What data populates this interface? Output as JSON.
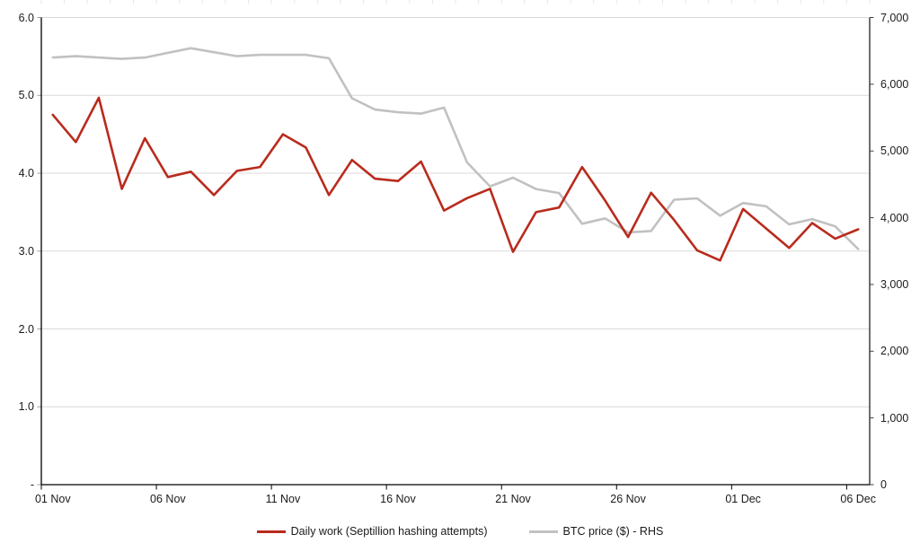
{
  "chart_data": {
    "type": "line",
    "title": "",
    "x": [
      "01 Nov",
      "02 Nov",
      "03 Nov",
      "04 Nov",
      "05 Nov",
      "06 Nov",
      "07 Nov",
      "08 Nov",
      "09 Nov",
      "10 Nov",
      "11 Nov",
      "12 Nov",
      "13 Nov",
      "14 Nov",
      "15 Nov",
      "16 Nov",
      "17 Nov",
      "18 Nov",
      "19 Nov",
      "20 Nov",
      "21 Nov",
      "22 Nov",
      "23 Nov",
      "24 Nov",
      "25 Nov",
      "26 Nov",
      "27 Nov",
      "28 Nov",
      "29 Nov",
      "30 Nov",
      "01 Dec",
      "02 Dec",
      "03 Dec",
      "04 Dec",
      "05 Dec",
      "06 Dec"
    ],
    "series": [
      {
        "name": "Daily work (Septillion hashing attempts)",
        "axis": "left",
        "color": "#b92b1d",
        "values": [
          4.75,
          4.4,
          4.97,
          3.8,
          4.45,
          3.95,
          4.02,
          3.72,
          4.03,
          4.08,
          4.5,
          4.33,
          3.72,
          4.17,
          3.93,
          3.9,
          4.15,
          3.52,
          3.68,
          3.8,
          2.99,
          3.5,
          3.56,
          4.08,
          3.65,
          3.18,
          3.75,
          3.4,
          3.01,
          2.88,
          3.54,
          3.29,
          3.04,
          3.36,
          3.16,
          3.28
        ]
      },
      {
        "name": "BTC price ($) - RHS",
        "axis": "right",
        "color": "#c1c1c1",
        "values": [
          6400,
          6420,
          6400,
          6380,
          6400,
          6470,
          6540,
          6480,
          6420,
          6440,
          6440,
          6440,
          6390,
          5790,
          5620,
          5580,
          5560,
          5650,
          4830,
          4470,
          4600,
          4430,
          4370,
          3910,
          3990,
          3780,
          3800,
          4270,
          4290,
          4030,
          4220,
          4170,
          3900,
          3980,
          3870,
          3530
        ]
      }
    ],
    "left_axis": {
      "min": 0,
      "max": 6,
      "tick_values": [
        6,
        5,
        4,
        3,
        2,
        1,
        0
      ],
      "tick_labels": [
        "6.0",
        "5.0",
        "4.0",
        "3.0",
        "2.0",
        "1.0",
        "-"
      ]
    },
    "right_axis": {
      "min": 0,
      "max": 7000,
      "tick_values": [
        7000,
        6000,
        5000,
        4000,
        3000,
        2000,
        1000,
        0
      ],
      "tick_labels": [
        "7,000",
        "6,000",
        "5,000",
        "4,000",
        "3,000",
        "2,000",
        "1,000",
        "0"
      ]
    },
    "x_axis": {
      "tick_day_indices": [
        0,
        5,
        10,
        15,
        20,
        25,
        30,
        35
      ],
      "tick_labels": [
        "01 Nov",
        "06 Nov",
        "11 Nov",
        "16 Nov",
        "21 Nov",
        "26 Nov",
        "01 Dec",
        "06 Dec"
      ]
    },
    "grid": true,
    "legend_position": "bottom"
  },
  "colors": {
    "background": "#ffffff",
    "grid": "#d9d9d9",
    "top_tick": "#e6e6e6",
    "axis_left": "#000000",
    "axis_bottom": "#000000",
    "axis_right": "#3f3f3f",
    "text": "#1a1a1a"
  }
}
